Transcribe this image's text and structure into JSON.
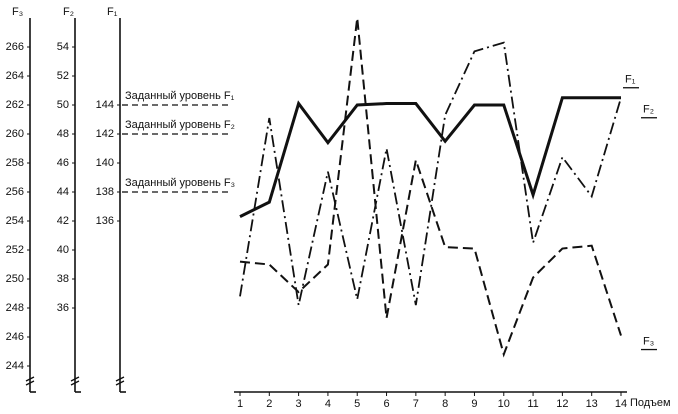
{
  "chart_data": {
    "type": "line",
    "x_label": "Подъем",
    "categories": [
      "1",
      "2",
      "3",
      "4",
      "5",
      "6",
      "7",
      "8",
      "9",
      "10",
      "11",
      "12",
      "13",
      "14"
    ],
    "axes": [
      {
        "title": "F₃",
        "ylim": [
          242,
          268
        ],
        "yticks": [
          244,
          246,
          248,
          250,
          252,
          254,
          256,
          258,
          260,
          262,
          264,
          266
        ]
      },
      {
        "title": "F₂",
        "ylim": [
          30,
          56
        ],
        "yticks": [
          36,
          38,
          40,
          42,
          44,
          46,
          48,
          50,
          52,
          54
        ]
      },
      {
        "title": "F₁",
        "ylim": [
          124,
          150
        ],
        "yticks": [
          136,
          138,
          140,
          142,
          144
        ]
      }
    ],
    "reference_lines": [
      {
        "label": "Заданный уровень F₁",
        "value": 144,
        "axis": 2
      },
      {
        "label": "Заданный уровень F₂",
        "value": 48,
        "axis": 1
      },
      {
        "label": "Заданный уровень F₃",
        "value": 256,
        "axis": 0
      }
    ],
    "series": [
      {
        "name": "F₁",
        "color": "#111111",
        "line_style": "solid",
        "axis": 2,
        "values": [
          136.3,
          137.3,
          144.1,
          141.4,
          144,
          144.1,
          144.1,
          141.5,
          144,
          144,
          137.8,
          144.5,
          144.5,
          144.5
        ]
      },
      {
        "name": "F₂",
        "color": "#111111",
        "line_style": "dashdot",
        "axis": 1,
        "values": [
          36.8,
          49.1,
          36.2,
          45.4,
          36.6,
          47,
          36.2,
          49.3,
          53.7,
          54.3,
          40.5,
          46.4,
          43.7,
          50.5
        ]
      },
      {
        "name": "F₃",
        "color": "#111111",
        "line_style": "dashed",
        "axis": 0,
        "values": [
          251.2,
          251,
          249.1,
          251,
          268,
          247.3,
          258.2,
          252.2,
          252.1,
          244.8,
          250.1,
          252.1,
          252.3,
          246.1
        ]
      }
    ]
  }
}
